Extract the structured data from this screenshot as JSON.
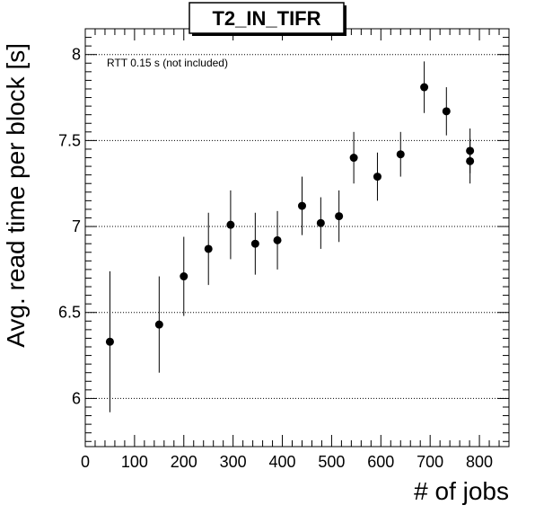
{
  "chart_data": {
    "type": "scatter",
    "title": "T2_IN_TIFR",
    "xlabel": "# of jobs",
    "ylabel": "Avg. read time per block [s]",
    "annotation": "RTT 0.15 s (not included)",
    "xlim": [
      0,
      860
    ],
    "ylim": [
      5.72,
      8.15
    ],
    "x_ticks": [
      0,
      100,
      200,
      300,
      400,
      500,
      600,
      700,
      800
    ],
    "y_ticks": [
      6,
      6.5,
      7,
      7.5,
      8
    ],
    "y_tick_labels": [
      "6",
      "6.5",
      "7",
      "7.5",
      "8"
    ],
    "grid": "horizontal dotted at major y ticks",
    "series": [
      {
        "points": [
          {
            "x": 50,
            "y": 6.33,
            "err": 0.41
          },
          {
            "x": 150,
            "y": 6.43,
            "err": 0.28
          },
          {
            "x": 200,
            "y": 6.71,
            "err": 0.23
          },
          {
            "x": 250,
            "y": 6.87,
            "err": 0.21
          },
          {
            "x": 295,
            "y": 7.01,
            "err": 0.2
          },
          {
            "x": 345,
            "y": 6.9,
            "err": 0.18
          },
          {
            "x": 390,
            "y": 6.92,
            "err": 0.17
          },
          {
            "x": 440,
            "y": 7.12,
            "err": 0.17
          },
          {
            "x": 478,
            "y": 7.02,
            "err": 0.15
          },
          {
            "x": 515,
            "y": 7.06,
            "err": 0.15
          },
          {
            "x": 545,
            "y": 7.4,
            "err": 0.15
          },
          {
            "x": 593,
            "y": 7.29,
            "err": 0.14
          },
          {
            "x": 640,
            "y": 7.42,
            "err": 0.13
          },
          {
            "x": 688,
            "y": 7.81,
            "err": 0.15
          },
          {
            "x": 733,
            "y": 7.67,
            "err": 0.14
          },
          {
            "x": 781,
            "y": 7.44,
            "err": 0.13
          },
          {
            "x": 781,
            "y": 7.38,
            "err": 0.13
          }
        ]
      }
    ]
  }
}
